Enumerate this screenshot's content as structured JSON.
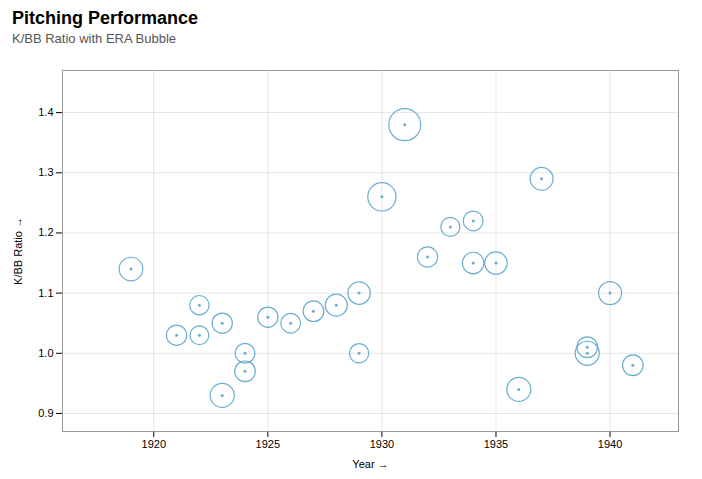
{
  "chart_data": {
    "type": "bubble",
    "title": "Pitching Performance",
    "subtitle": "K/BB Ratio with ERA Bubble",
    "xlabel": "Year",
    "ylabel": "K/BB Ratio",
    "x": [
      1919,
      1921,
      1922,
      1922,
      1923,
      1923,
      1924,
      1924,
      1925,
      1926,
      1927,
      1928,
      1929,
      1929,
      1930,
      1931,
      1932,
      1933,
      1934,
      1934,
      1935,
      1936,
      1937,
      1939,
      1939,
      1940,
      1941
    ],
    "values": [
      1.14,
      1.03,
      1.08,
      1.03,
      1.05,
      0.93,
      0.97,
      1.0,
      1.06,
      1.05,
      1.07,
      1.08,
      1.0,
      1.1,
      1.26,
      1.38,
      1.16,
      1.21,
      1.22,
      1.15,
      1.15,
      0.94,
      1.29,
      1.0,
      1.01,
      1.1,
      0.98
    ],
    "sizes": [
      300,
      220,
      200,
      190,
      220,
      310,
      230,
      210,
      220,
      210,
      230,
      260,
      200,
      270,
      430,
      550,
      220,
      195,
      210,
      250,
      270,
      310,
      280,
      310,
      230,
      285,
      230
    ],
    "color": "#6aaecf",
    "xlim": [
      1916,
      1943
    ],
    "ylim": [
      0.87,
      1.47
    ],
    "xticks": [
      1920,
      1925,
      1930,
      1935,
      1940
    ],
    "yticks": [
      0.9,
      {
        "value": 1.0,
        "label": "1.0"
      },
      1.1,
      1.2,
      1.3,
      1.4
    ],
    "grid": true
  }
}
